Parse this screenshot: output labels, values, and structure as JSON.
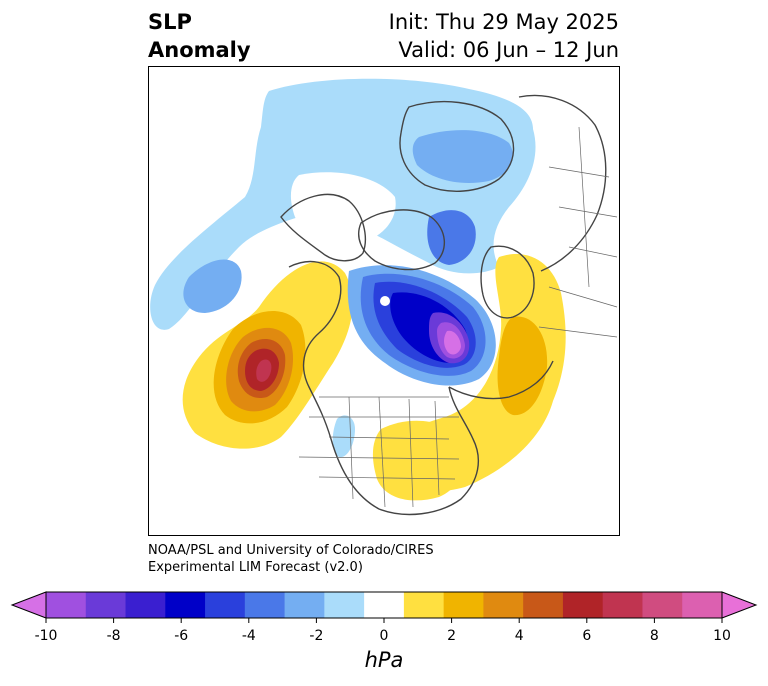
{
  "header": {
    "title_line1": "SLP",
    "title_line2": "Anomaly",
    "init": "Init: Thu 29 May 2025",
    "valid": "Valid: 06 Jun – 12 Jun"
  },
  "credit": {
    "line1": "NOAA/PSL and University of Colorado/CIRES",
    "line2": "Experimental LIM Forecast (v2.0)"
  },
  "colorbar": {
    "unit": "hPa",
    "ticks": [
      "-10",
      "-8",
      "-6",
      "-4",
      "-2",
      "0",
      "2",
      "4",
      "6",
      "8",
      "10"
    ],
    "colors": [
      "#d670e6",
      "#a050e0",
      "#6a3ad8",
      "#3a1fd0",
      "#0000c8",
      "#2a40dc",
      "#4a78e8",
      "#74aef2",
      "#aadcfa",
      "#ffffff",
      "#ffe040",
      "#f0b400",
      "#e08a10",
      "#c85818",
      "#b02428",
      "#c03450",
      "#d04c80",
      "#dc60b0",
      "#e870d8"
    ]
  },
  "map": {
    "colors": {
      "lightblue": "#aadcfa",
      "blue1": "#74aef2",
      "blue2": "#4a78e8",
      "blue3": "#2a40dc",
      "blue4": "#0000c8",
      "blue5": "#3a1fd0",
      "violet": "#6a3ad8",
      "purple": "#a050e0",
      "magenta": "#d670e6",
      "yellow": "#ffe040",
      "gold": "#f0b400",
      "orange": "#e08a10",
      "darkorange": "#c85818",
      "red": "#b02428",
      "pinkred": "#c03450",
      "coast": "#444444"
    }
  }
}
